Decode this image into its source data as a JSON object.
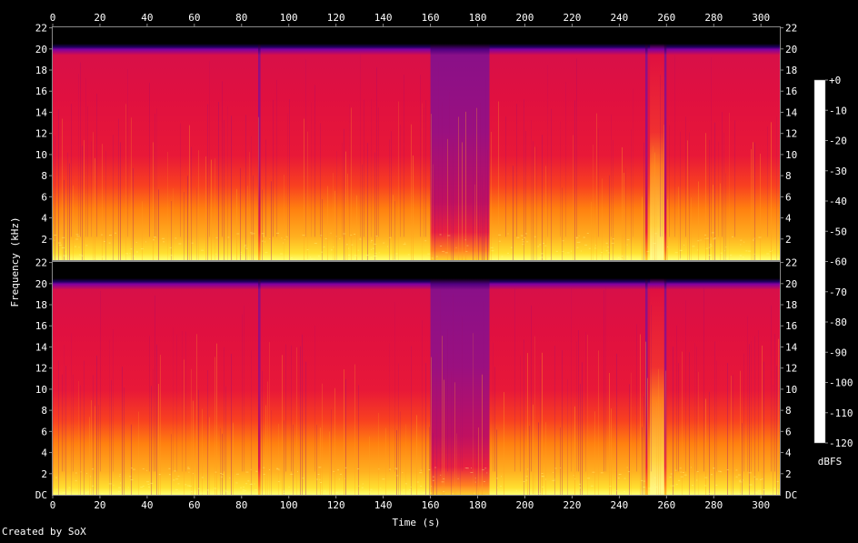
{
  "credit": "Created by SoX",
  "chart_data": {
    "type": "heatmap",
    "title": "",
    "xlabel": "Time (s)",
    "ylabel": "Frequency (kHz)",
    "xlim": [
      0,
      308
    ],
    "ylim": [
      0,
      22.05
    ],
    "x_ticks": [
      "0",
      "20",
      "40",
      "60",
      "80",
      "100",
      "120",
      "140",
      "160",
      "180",
      "200",
      "220",
      "240",
      "260",
      "280",
      "300"
    ],
    "y_ticks": [
      "2",
      "4",
      "6",
      "8",
      "10",
      "12",
      "14",
      "16",
      "18",
      "20",
      "22"
    ],
    "y_bottom_label": "DC",
    "channels": 2,
    "colorbar": {
      "label": "dBFS",
      "range": [
        -120,
        0
      ],
      "ticks": [
        "+0",
        "-10",
        "-20",
        "-30",
        "-40",
        "-50",
        "-60",
        "-70",
        "-80",
        "-90",
        "-100",
        "-110",
        "-120"
      ],
      "colors": [
        "#ffffff",
        "#ffff80",
        "#ffe000",
        "#ffa000",
        "#ff5010",
        "#e01040",
        "#b00070",
        "#800090",
        "#4000a0",
        "#100070",
        "#000040",
        "#000000"
      ]
    },
    "dark_segments_s": [
      [
        87,
        88
      ],
      [
        160,
        185
      ],
      [
        251,
        252
      ],
      [
        259,
        260
      ]
    ],
    "bright_segments_s": [
      [
        253,
        259
      ]
    ]
  }
}
